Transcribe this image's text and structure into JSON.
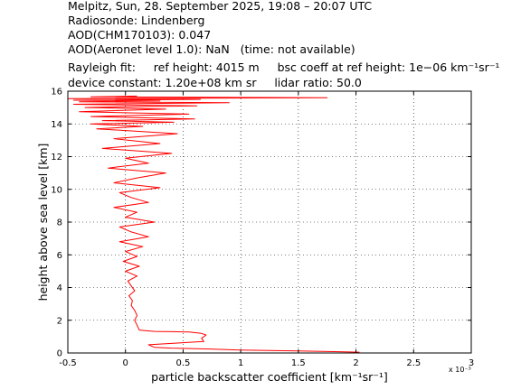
{
  "header": {
    "line1": "Melpitz, Sun, 28. September 2025, 19:08 – 20:07 UTC",
    "line2": "Radiosonde: Lindenberg",
    "line3": "AOD(CHM170103): 0.047",
    "line4": "AOD(Aeronet level 1.0): NaN   (time: not available)",
    "line5": "Rayleigh fit:     ref height: 4015 m     bsc coeff at ref height: 1e−06 km⁻¹sr⁻¹",
    "line6": "device constant: 1.20e+08 km sr     lidar ratio: 50.0"
  },
  "chart_data": {
    "type": "line",
    "xlabel": "particle backscatter coefficient [km⁻¹sr⁻¹]",
    "ylabel": "height above sea level [km]",
    "x_multiplier": "x 10⁻³",
    "xlim": [
      -0.5,
      3
    ],
    "ylim": [
      0,
      16
    ],
    "xticks": [
      -0.5,
      0,
      0.5,
      1,
      1.5,
      2,
      2.5,
      3
    ],
    "xtick_labels": [
      "-0.5",
      "0",
      "0.5",
      "1",
      "1.5",
      "2",
      "2.5",
      "3"
    ],
    "yticks": [
      0,
      2,
      4,
      6,
      8,
      10,
      12,
      14,
      16
    ],
    "ytick_labels": [
      "0",
      "2",
      "4",
      "6",
      "8",
      "10",
      "12",
      "14",
      "16"
    ],
    "grid": true,
    "color": "#ff0000",
    "series": [
      {
        "x": [
          2.03,
          1.5,
          1.0,
          0.7,
          0.4,
          0.25,
          0.2,
          0.68,
          0.66,
          0.7,
          0.66,
          0.55,
          0.4,
          0.25,
          0.12,
          0.1,
          0.08,
          0.1,
          0.08,
          0.05,
          0.06,
          0.03,
          0.08,
          0.05,
          0.02,
          0.1,
          0.0,
          0.12,
          -0.02,
          0.1,
          0.0,
          0.15,
          -0.05,
          0.2,
          0.05,
          -0.05,
          0.25,
          0.0,
          0.1,
          -0.1,
          0.2,
          0.05,
          -0.05,
          0.3,
          -0.1,
          0.1,
          0.35,
          -0.15,
          0.2,
          0.0,
          0.4,
          -0.2,
          0.3,
          -0.1,
          0.45,
          -0.25,
          0.15,
          -0.3,
          0.42,
          -0.2,
          0.6,
          -0.3,
          0.55,
          -0.4,
          0.35,
          -0.35,
          0.05,
          0.62,
          -0.45,
          0.9,
          -0.4,
          0.3,
          -0.45,
          0.65,
          -0.5,
          1.75,
          -0.3,
          0.1
        ],
        "y": [
          0.05,
          0.12,
          0.18,
          0.25,
          0.3,
          0.35,
          0.5,
          0.7,
          0.9,
          1.1,
          1.2,
          1.28,
          1.3,
          1.32,
          1.4,
          1.7,
          2.0,
          2.3,
          2.6,
          2.9,
          3.2,
          3.5,
          3.8,
          4.1,
          4.4,
          4.7,
          5.0,
          5.3,
          5.6,
          5.9,
          6.2,
          6.5,
          6.8,
          7.1,
          7.4,
          7.7,
          8.0,
          8.3,
          8.6,
          8.9,
          9.2,
          9.5,
          9.8,
          10.1,
          10.4,
          10.7,
          11.0,
          11.3,
          11.6,
          11.9,
          12.2,
          12.5,
          12.8,
          13.1,
          13.4,
          13.7,
          13.85,
          14.0,
          14.1,
          14.2,
          14.3,
          14.45,
          14.6,
          14.75,
          14.9,
          15.0,
          15.05,
          15.1,
          15.2,
          15.3,
          15.35,
          15.4,
          15.45,
          15.5,
          15.55,
          15.6,
          15.65,
          15.7
        ]
      }
    ]
  }
}
